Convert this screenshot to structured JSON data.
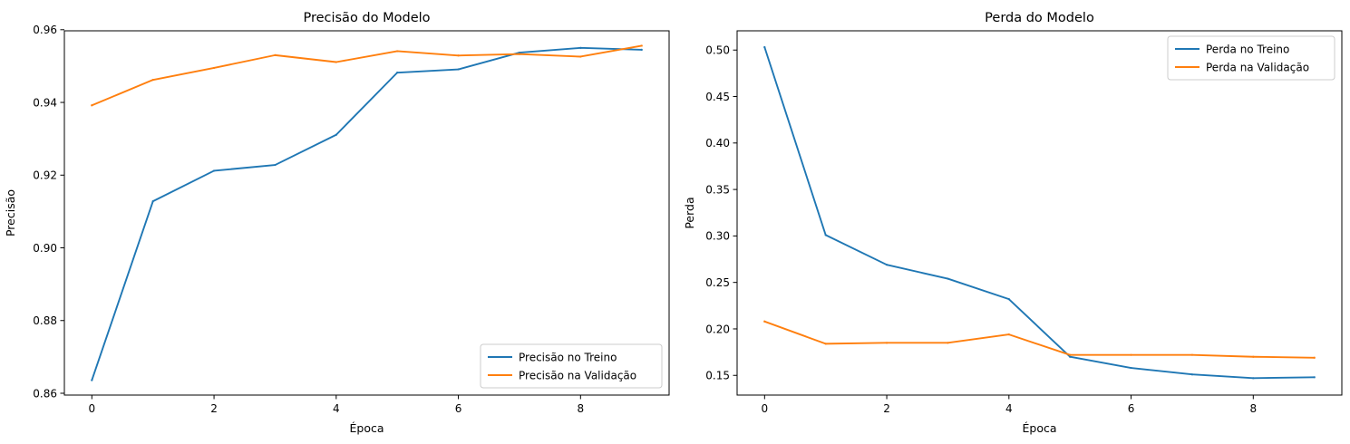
{
  "chart_data": [
    {
      "type": "line",
      "title": "Precisão do Modelo",
      "xlabel": "Época",
      "ylabel": "Precisão",
      "x": [
        0,
        1,
        2,
        3,
        4,
        5,
        6,
        7,
        8,
        9
      ],
      "xlim": [
        -0.45,
        9.45
      ],
      "ylim": [
        0.8595,
        0.9597
      ],
      "xticks": [
        0,
        2,
        4,
        6,
        8
      ],
      "xtick_labels": [
        "0",
        "2",
        "4",
        "6",
        "8"
      ],
      "yticks": [
        0.86,
        0.88,
        0.9,
        0.92,
        0.94,
        0.96
      ],
      "ytick_labels": [
        "0.86",
        "0.88",
        "0.90",
        "0.92",
        "0.94",
        "0.96"
      ],
      "grid": false,
      "legend_position": "lower-right",
      "series": [
        {
          "name": "Precisão no Treino",
          "color": "#1f77b4",
          "values": [
            0.8636,
            0.9128,
            0.9212,
            0.9228,
            0.9311,
            0.9482,
            0.9491,
            0.9537,
            0.955,
            0.9545
          ]
        },
        {
          "name": "Precisão na Validação",
          "color": "#ff7f0e",
          "values": [
            0.9392,
            0.9462,
            0.9495,
            0.953,
            0.9511,
            0.9541,
            0.9529,
            0.9533,
            0.9526,
            0.9556
          ]
        }
      ]
    },
    {
      "type": "line",
      "title": "Perda do Modelo",
      "xlabel": "Época",
      "ylabel": "Perda",
      "x": [
        0,
        1,
        2,
        3,
        4,
        5,
        6,
        7,
        8,
        9
      ],
      "xlim": [
        -0.45,
        9.45
      ],
      "ylim": [
        0.1288,
        0.5207
      ],
      "xticks": [
        0,
        2,
        4,
        6,
        8
      ],
      "xtick_labels": [
        "0",
        "2",
        "4",
        "6",
        "8"
      ],
      "yticks": [
        0.15,
        0.2,
        0.25,
        0.3,
        0.35,
        0.4,
        0.45,
        0.5
      ],
      "ytick_labels": [
        "0.15",
        "0.20",
        "0.25",
        "0.30",
        "0.35",
        "0.40",
        "0.45",
        "0.50"
      ],
      "grid": false,
      "legend_position": "upper-right",
      "series": [
        {
          "name": "Perda no Treino",
          "color": "#1f77b4",
          "values": [
            0.503,
            0.301,
            0.269,
            0.254,
            0.232,
            0.17,
            0.158,
            0.151,
            0.147,
            0.148
          ]
        },
        {
          "name": "Perda na Validação",
          "color": "#ff7f0e",
          "values": [
            0.208,
            0.184,
            0.185,
            0.185,
            0.194,
            0.172,
            0.172,
            0.172,
            0.17,
            0.169
          ]
        }
      ]
    }
  ]
}
